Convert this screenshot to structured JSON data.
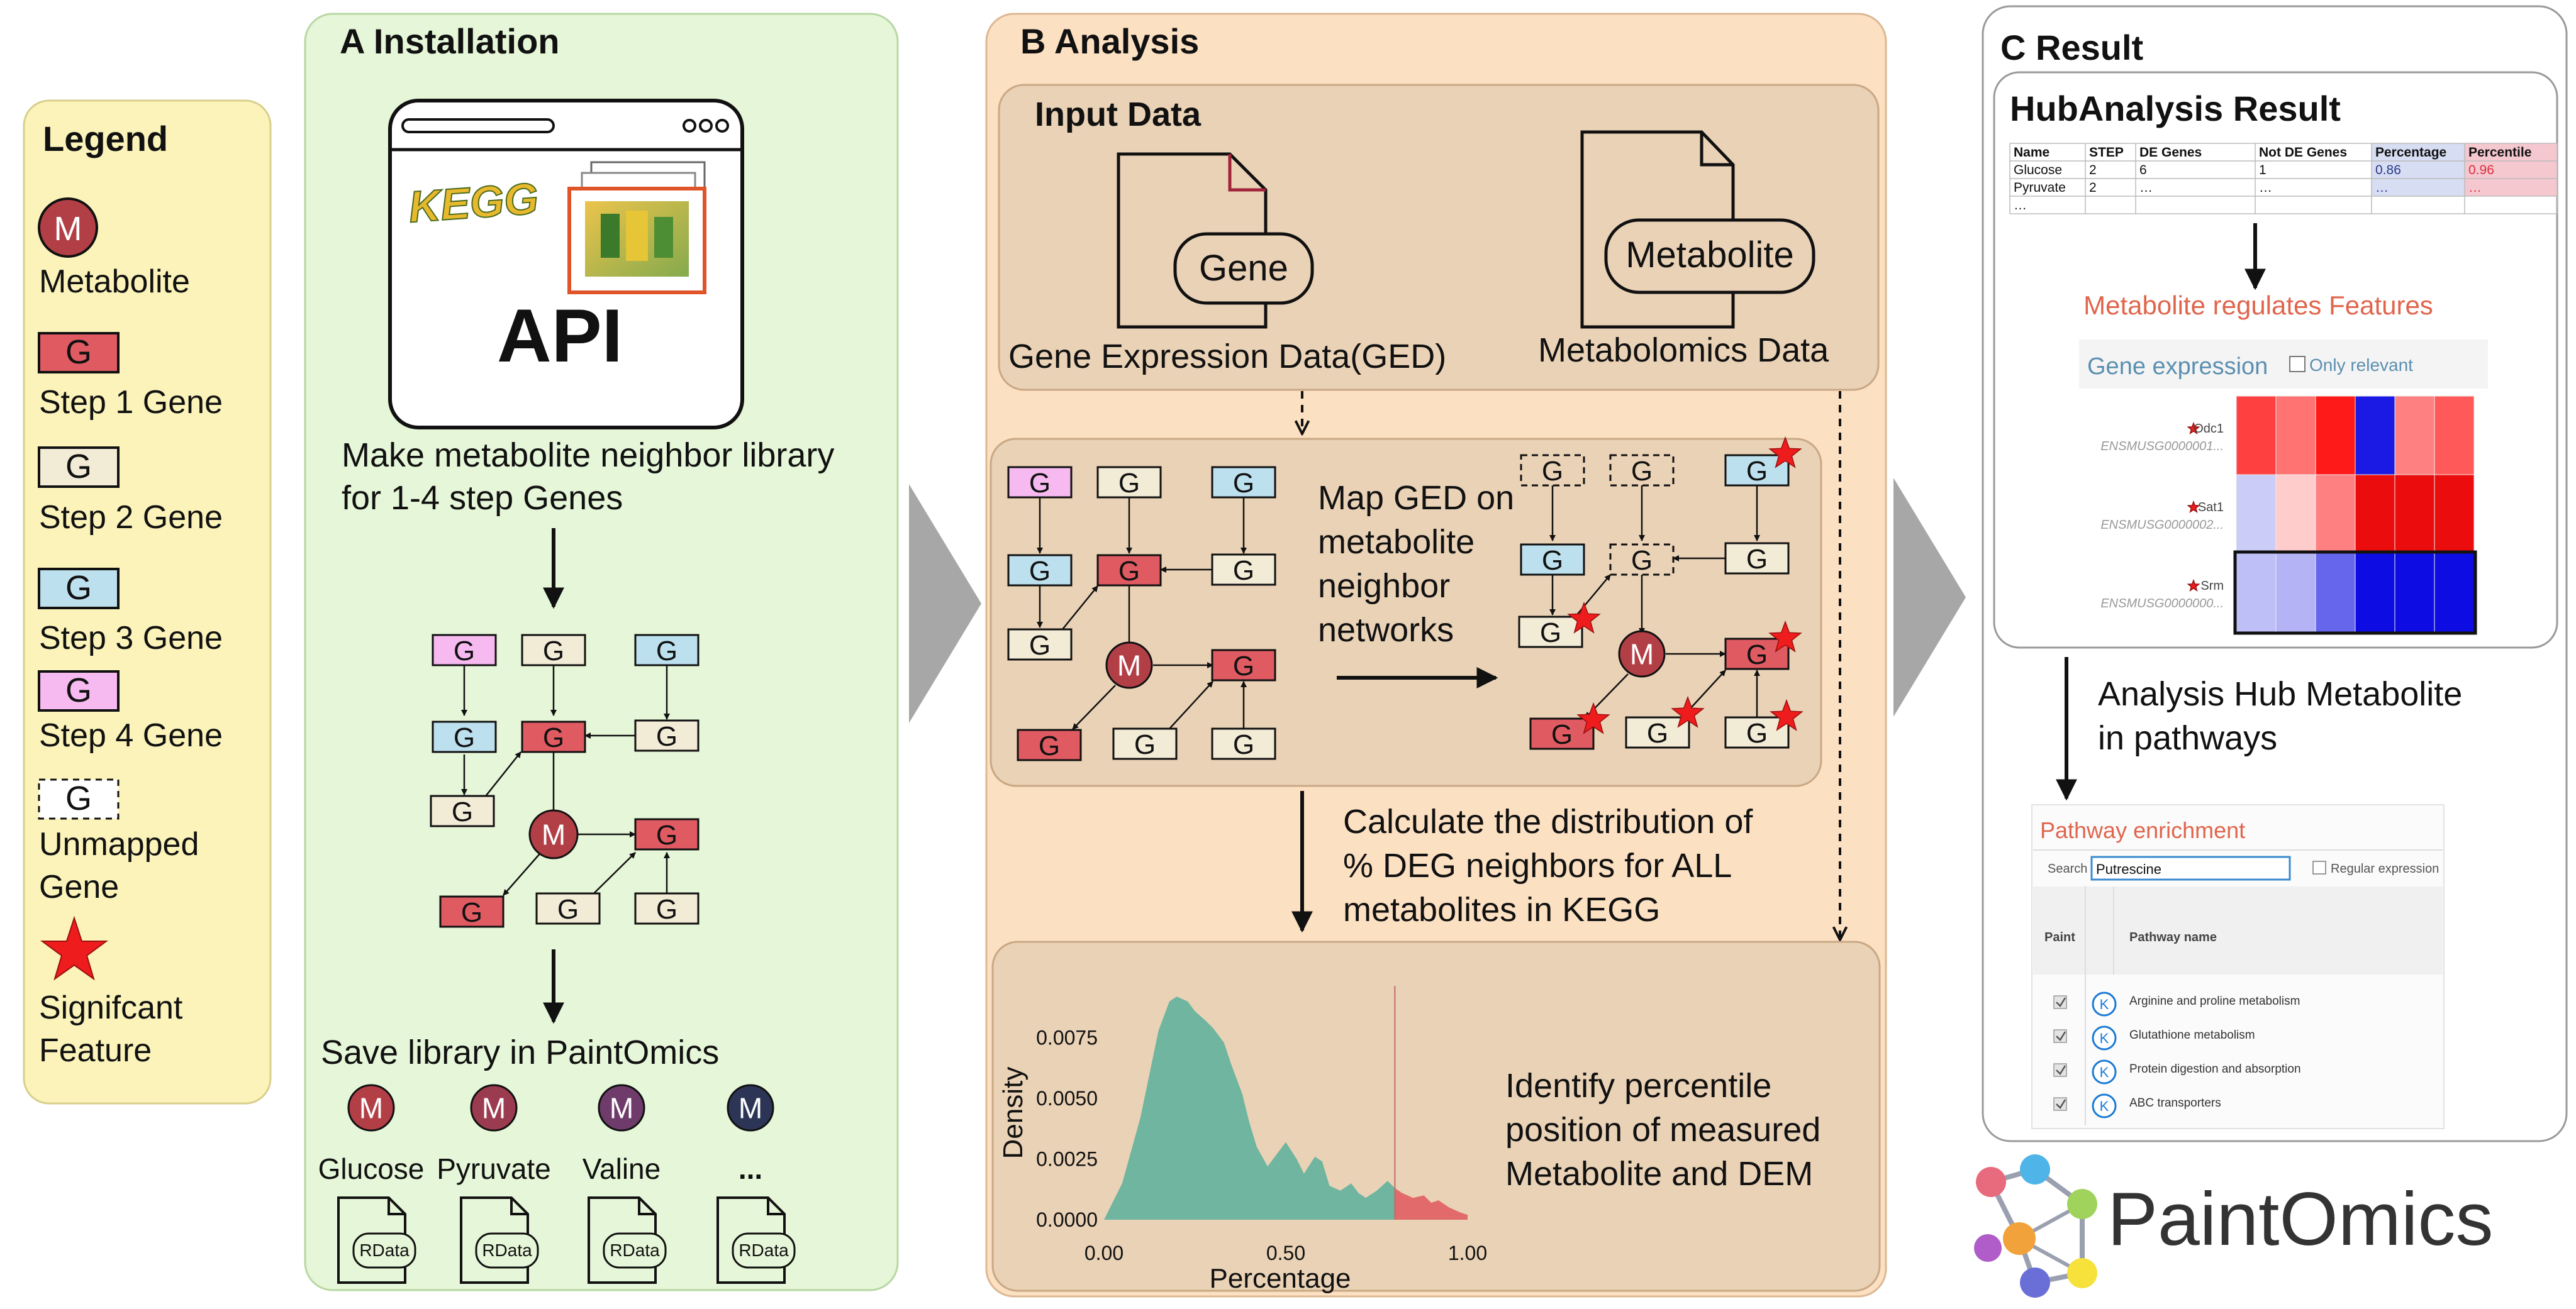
{
  "legend": {
    "title": "Legend",
    "items": {
      "metabolite": {
        "symbol": "M",
        "label": "Metabolite"
      },
      "step1": {
        "symbol": "G",
        "label": "Step 1 Gene"
      },
      "step2": {
        "symbol": "G",
        "label": "Step 2 Gene"
      },
      "step3": {
        "symbol": "G",
        "label": "Step 3 Gene"
      },
      "step4": {
        "symbol": "G",
        "label": "Step 4 Gene"
      },
      "unmapped": {
        "symbol": "G",
        "line1": "Unmapped",
        "line2": "Gene"
      },
      "significant": {
        "line1": "Signifcant",
        "line2": "Feature"
      }
    }
  },
  "panel_a": {
    "title": "A Installation",
    "api_label": "API",
    "kegg_logo": "KEGG",
    "make_library_line1": "Make metabolite neighbor library",
    "make_library_line2": "for 1-4 step Genes",
    "save_library": "Save library in PaintOmics",
    "metabolites": [
      {
        "symbol": "M",
        "name": "Glucose",
        "file": "RData"
      },
      {
        "symbol": "M",
        "name": "Pyruvate",
        "file": "RData"
      },
      {
        "symbol": "M",
        "name": "Valine",
        "file": "RData"
      },
      {
        "symbol": "M",
        "name": "...",
        "file": "RData"
      }
    ]
  },
  "panel_b": {
    "title": "B Analysis",
    "input_title": "Input Data",
    "gene_doc": "Gene",
    "gene_caption": "Gene Expression Data(GED)",
    "metab_doc": "Metabolite",
    "metab_caption": "Metabolomics Data",
    "map_line1": "Map GED on",
    "map_line2": "metabolite",
    "map_line3": "neighbor",
    "map_line4": "networks",
    "calc_line1": "Calculate the distribution of",
    "calc_line2": "% DEG neighbors for ALL",
    "calc_line3": "metabolites in KEGG",
    "identify_line1": "Identify percentile",
    "identify_line2": "position of measured",
    "identify_line3": "Metabolite and DEM",
    "gene_symbol": "G",
    "metab_symbol": "M"
  },
  "chart_data": {
    "type": "area",
    "title": "",
    "xlabel": "Percentage",
    "ylabel": "Density",
    "xlim": [
      0,
      1.0
    ],
    "ylim": [
      0,
      0.0092
    ],
    "xticks": [
      "0.00",
      "0.50",
      "1.00"
    ],
    "yticks": [
      "0.0000",
      "0.0025",
      "0.0050",
      "0.0075"
    ],
    "threshold": 0.8,
    "x": [
      0.0,
      0.05,
      0.1,
      0.15,
      0.18,
      0.2,
      0.23,
      0.25,
      0.28,
      0.3,
      0.33,
      0.35,
      0.38,
      0.4,
      0.42,
      0.45,
      0.48,
      0.5,
      0.53,
      0.55,
      0.58,
      0.6,
      0.62,
      0.65,
      0.68,
      0.7,
      0.72,
      0.75,
      0.78,
      0.8,
      0.82,
      0.85,
      0.88,
      0.9,
      0.92,
      0.95,
      0.98,
      1.0
    ],
    "density": [
      0.0,
      0.0015,
      0.0042,
      0.0078,
      0.009,
      0.0092,
      0.009,
      0.0086,
      0.0082,
      0.0079,
      0.0073,
      0.0064,
      0.0052,
      0.004,
      0.003,
      0.0022,
      0.0028,
      0.0032,
      0.0025,
      0.0019,
      0.0026,
      0.0024,
      0.0014,
      0.0012,
      0.0015,
      0.0011,
      0.0009,
      0.0012,
      0.0016,
      0.0013,
      0.0011,
      0.0009,
      0.001,
      0.0007,
      0.0008,
      0.0005,
      0.0003,
      0.0002
    ]
  },
  "panel_c": {
    "title": "C Result",
    "hub_title": "HubAnalysis Result",
    "table": {
      "headers": [
        "Name",
        "STEP",
        "DE Genes",
        "Not DE Genes",
        "Percentage",
        "Percentile"
      ],
      "rows": [
        [
          "Glucose",
          "2",
          "6",
          "1",
          "0.86",
          "0.96"
        ],
        [
          "Pyruvate",
          "2",
          "…",
          "…",
          "…",
          "…"
        ],
        [
          "…",
          "",
          "",
          "",
          "",
          ""
        ]
      ]
    },
    "regulates_title": "Metabolite regulates Features",
    "gene_expression_title": "Gene expression",
    "only_relevant": "Only relevant",
    "heatmap_rows": [
      {
        "gene": "Odc1",
        "id": "ENSMUSG0000001...",
        "values": [
          0.75,
          0.55,
          0.9,
          -0.9,
          0.5,
          0.65
        ]
      },
      {
        "gene": "Sat1",
        "id": "ENSMUSG0000002...",
        "values": [
          -0.2,
          0.2,
          0.5,
          0.95,
          0.95,
          0.95
        ]
      },
      {
        "gene": "Srm",
        "id": "ENSMUSG0000000...",
        "values": [
          -0.25,
          -0.3,
          -0.6,
          -0.95,
          -0.95,
          -0.95
        ]
      }
    ],
    "hub_line1": "Analysis Hub Metabolite",
    "hub_line2": "in pathways",
    "pathway_title": "Pathway enrichment",
    "search_label": "Search",
    "search_value": "Putrescine",
    "regex_label": "Regular expression",
    "paint_col": "Paint",
    "pathway_col": "Pathway name",
    "pathways": [
      "Arginine and proline metabolism",
      "Glutathione metabolism",
      "Protein digestion and absorption",
      "ABC transporters"
    ],
    "k_symbol": "K",
    "logo": "PaintOmics"
  },
  "colors": {
    "legend_bg": "#fbf3b9",
    "panel_a_bg": "#e6f6d8",
    "panel_b_bg": "#fce0c2",
    "panel_b_inner": "#ead2b6",
    "step1": "#e05a62",
    "step2": "#f2ebd6",
    "step3": "#bde0ee",
    "step4": "#f7baf0",
    "metabolite": "#b33f46",
    "density_main": "#6fb5a0",
    "density_tail": "#e26a6a"
  }
}
